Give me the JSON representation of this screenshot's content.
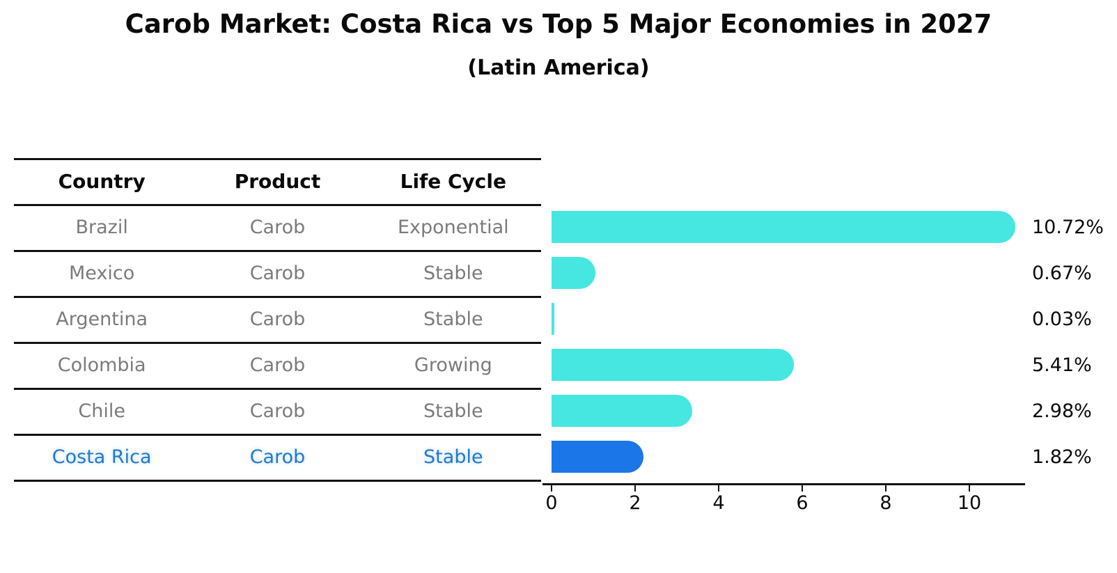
{
  "title": "Carob Market: Costa Rica vs Top 5 Major Economies in 2027",
  "subtitle": "(Latin America)",
  "table": {
    "headers": [
      "Country",
      "Product",
      "Life Cycle"
    ],
    "rows": [
      {
        "country": "Brazil",
        "product": "Carob",
        "life_cycle": "Exponential",
        "highlighted": false
      },
      {
        "country": "Mexico",
        "product": "Carob",
        "life_cycle": "Stable",
        "highlighted": false
      },
      {
        "country": "Argentina",
        "product": "Carob",
        "life_cycle": "Stable",
        "highlighted": false
      },
      {
        "country": "Colombia",
        "product": "Carob",
        "life_cycle": "Growing",
        "highlighted": false
      },
      {
        "country": "Chile",
        "product": "Carob",
        "life_cycle": "Stable",
        "highlighted": true,
        "note": ""
      },
      {
        "country": "Costa Rica",
        "product": "Carob",
        "life_cycle": "Stable",
        "highlighted": true
      }
    ]
  },
  "chart_data": {
    "type": "bar",
    "orientation": "horizontal",
    "categories": [
      "Brazil",
      "Mexico",
      "Argentina",
      "Colombia",
      "Chile",
      "Costa Rica"
    ],
    "values": [
      10.72,
      0.67,
      0.03,
      5.41,
      2.98,
      1.82
    ],
    "value_labels": [
      "10.72%",
      "0.67%",
      "0.03%",
      "5.41%",
      "2.98%",
      "1.82%"
    ],
    "x_ticks": [
      0,
      2,
      4,
      6,
      8,
      10
    ],
    "xlim": [
      0,
      11.3
    ],
    "xlabel": "",
    "ylabel": "",
    "grid": false,
    "legend": false,
    "highlight_index": 5,
    "highlight_style": "dotted-border"
  },
  "colors": {
    "bar": "#45e7e0",
    "highlight_bar": "#1b76e8",
    "highlight_text": "#2878c8",
    "row_text": "#7b7b7b",
    "axis": "#111111",
    "title_text": "#0a0a0a"
  }
}
